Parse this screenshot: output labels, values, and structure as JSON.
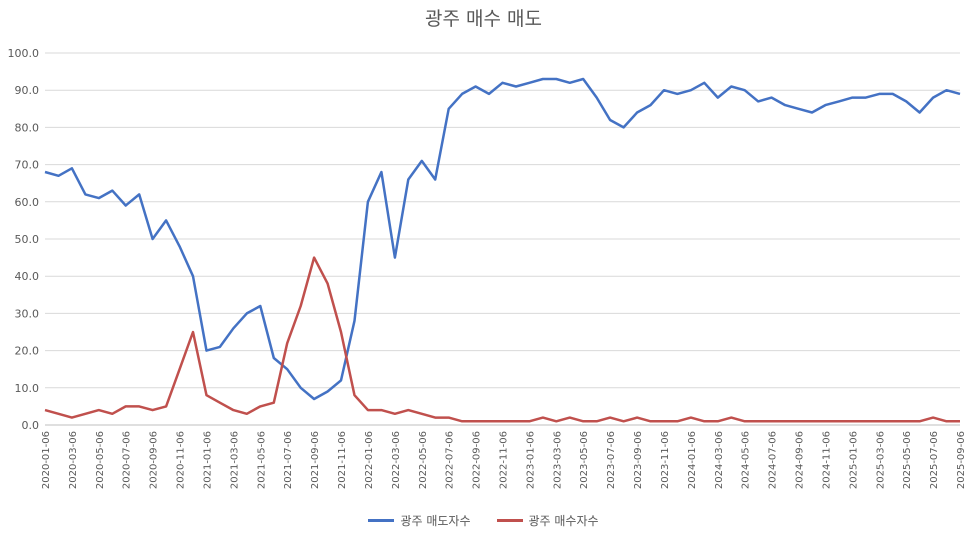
{
  "chart_data": {
    "type": "line",
    "title": "광주 매수 매도",
    "xlabel": "",
    "ylabel": "",
    "ylim": [
      0,
      100
    ],
    "y_ticks": [
      "0.0",
      "10.0",
      "20.0",
      "30.0",
      "40.0",
      "50.0",
      "60.0",
      "70.0",
      "80.0",
      "90.0",
      "100.0"
    ],
    "x_ticks": [
      "2020-01-06",
      "2020-03-06",
      "2020-05-06",
      "2020-07-06",
      "2020-09-06",
      "2020-11-06",
      "2021-01-06",
      "2021-03-06",
      "2021-05-06",
      "2021-07-06",
      "2021-09-06",
      "2021-11-06",
      "2022-01-06",
      "2022-03-06",
      "2022-05-06",
      "2022-07-06",
      "2022-09-06",
      "2022-11-06",
      "2023-01-06",
      "2023-03-06",
      "2023-05-06",
      "2023-07-06",
      "2023-09-06",
      "2023-11-06",
      "2024-01-06",
      "2024-03-06",
      "2024-05-06",
      "2024-07-06",
      "2024-09-06",
      "2024-11-06",
      "2025-01-06",
      "2025-03-06",
      "2025-05-06",
      "2025-07-06",
      "2025-09-06"
    ],
    "grid": true,
    "legend_position": "bottom",
    "x": [
      "2020-01",
      "2020-02",
      "2020-03",
      "2020-04",
      "2020-05",
      "2020-06",
      "2020-07",
      "2020-08",
      "2020-09",
      "2020-10",
      "2020-11",
      "2020-12",
      "2021-01",
      "2021-02",
      "2021-03",
      "2021-04",
      "2021-05",
      "2021-06",
      "2021-07",
      "2021-08",
      "2021-09",
      "2021-10",
      "2021-11",
      "2021-12",
      "2022-01",
      "2022-02",
      "2022-03",
      "2022-04",
      "2022-05",
      "2022-06",
      "2022-07",
      "2022-08",
      "2022-09",
      "2022-10",
      "2022-11",
      "2022-12",
      "2023-01",
      "2023-02",
      "2023-03",
      "2023-04",
      "2023-05",
      "2023-06",
      "2023-07",
      "2023-08",
      "2023-09",
      "2023-10",
      "2023-11",
      "2023-12",
      "2024-01",
      "2024-02",
      "2024-03",
      "2024-04",
      "2024-05",
      "2024-06",
      "2024-07",
      "2024-08",
      "2024-09",
      "2024-10",
      "2024-11",
      "2024-12",
      "2025-01",
      "2025-02",
      "2025-03",
      "2025-04",
      "2025-05",
      "2025-06",
      "2025-07",
      "2025-08",
      "2025-09"
    ],
    "series": [
      {
        "name": "광주 매도자수",
        "color": "#4472C4",
        "values": [
          68,
          67,
          69,
          62,
          61,
          63,
          59,
          62,
          50,
          55,
          48,
          40,
          20,
          21,
          26,
          30,
          32,
          18,
          15,
          10,
          7,
          9,
          12,
          28,
          60,
          68,
          45,
          66,
          71,
          66,
          85,
          89,
          91,
          89,
          92,
          91,
          92,
          93,
          93,
          92,
          93,
          88,
          82,
          80,
          84,
          86,
          90,
          89,
          90,
          92,
          88,
          91,
          90,
          87,
          88,
          86,
          85,
          84,
          86,
          87,
          88,
          88,
          89,
          89,
          87,
          84,
          88,
          90,
          89
        ]
      },
      {
        "name": "광주 매수자수",
        "color": "#C0504D",
        "values": [
          4,
          3,
          2,
          3,
          4,
          3,
          5,
          5,
          4,
          5,
          15,
          25,
          8,
          6,
          4,
          3,
          5,
          6,
          22,
          32,
          45,
          38,
          25,
          8,
          4,
          4,
          3,
          4,
          3,
          2,
          2,
          1,
          1,
          1,
          1,
          1,
          1,
          2,
          1,
          2,
          1,
          1,
          2,
          1,
          2,
          1,
          1,
          1,
          2,
          1,
          1,
          2,
          1,
          1,
          1,
          1,
          1,
          1,
          1,
          1,
          1,
          1,
          1,
          1,
          1,
          1,
          2,
          1,
          1
        ]
      }
    ]
  }
}
